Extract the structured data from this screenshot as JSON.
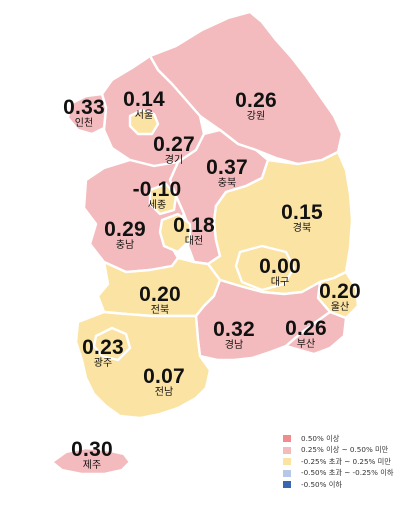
{
  "colors": {
    "above_050": "#f08b8e",
    "from_025_to_050": "#f3bbbd",
    "from_m025_to_025": "#fbe3a4",
    "from_m050_to_m025": "#b6c8e6",
    "below_m050": "#3a66b0",
    "boundary": "#ffffff"
  },
  "regions": [
    {
      "name": "강원",
      "value": "0.26",
      "color": "from_025_to_050"
    },
    {
      "name": "서울",
      "value": "0.14",
      "color": "from_m025_to_025"
    },
    {
      "name": "인천",
      "value": "0.33",
      "color": "from_025_to_050"
    },
    {
      "name": "경기",
      "value": "0.27",
      "color": "from_025_to_050"
    },
    {
      "name": "충북",
      "value": "0.37",
      "color": "from_025_to_050"
    },
    {
      "name": "세종",
      "value": "-0.10",
      "color": "from_m025_to_025"
    },
    {
      "name": "충남",
      "value": "0.29",
      "color": "from_025_to_050"
    },
    {
      "name": "대전",
      "value": "0.18",
      "color": "from_m025_to_025"
    },
    {
      "name": "경북",
      "value": "0.15",
      "color": "from_m025_to_025"
    },
    {
      "name": "대구",
      "value": "0.00",
      "color": "from_m025_to_025"
    },
    {
      "name": "울산",
      "value": "0.20",
      "color": "from_m025_to_025"
    },
    {
      "name": "전북",
      "value": "0.20",
      "color": "from_m025_to_025"
    },
    {
      "name": "경남",
      "value": "0.32",
      "color": "from_025_to_050"
    },
    {
      "name": "부산",
      "value": "0.26",
      "color": "from_025_to_050"
    },
    {
      "name": "광주",
      "value": "0.23",
      "color": "from_m025_to_025"
    },
    {
      "name": "전남",
      "value": "0.07",
      "color": "from_m025_to_025"
    },
    {
      "name": "제주",
      "value": "0.30",
      "color": "from_025_to_050"
    }
  ],
  "legend": [
    {
      "label": "0.50% 이상",
      "color": "above_050"
    },
    {
      "label": "0.25% 이상 ~ 0.50% 미만",
      "color": "from_025_to_050"
    },
    {
      "label": "-0.25% 초과 ~ 0.25% 미만",
      "color": "from_m025_to_025"
    },
    {
      "label": "-0.50% 초과 ~ -0.25% 이하",
      "color": "from_m050_to_m025"
    },
    {
      "label": "-0.50% 이하",
      "color": "below_m050"
    }
  ]
}
